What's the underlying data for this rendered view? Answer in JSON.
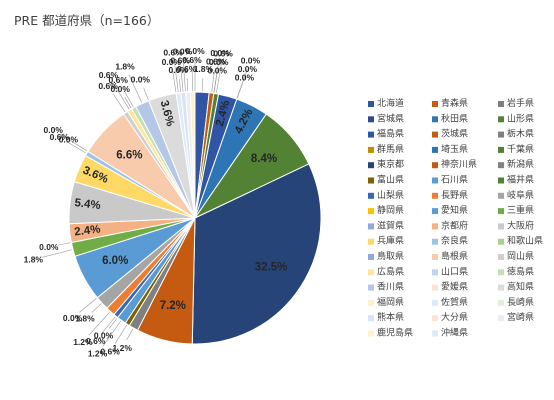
{
  "chart_data": {
    "type": "pie",
    "title": "PRE 都道府県（n=166）",
    "legend_position": "right",
    "start_angle_deg": 0,
    "direction": "clockwise",
    "categories": [
      "北海道",
      "青森県",
      "岩手県",
      "宮城県",
      "秋田県",
      "山形県",
      "福島県",
      "茨城県",
      "栃木県",
      "群馬県",
      "埼玉県",
      "千葉県",
      "東京都",
      "神奈川県",
      "新潟県",
      "富山県",
      "石川県",
      "福井県",
      "山梨県",
      "長野県",
      "岐阜県",
      "静岡県",
      "愛知県",
      "三重県",
      "滋賀県",
      "京都府",
      "大阪府",
      "兵庫県",
      "奈良県",
      "和歌山県",
      "鳥取県",
      "島根県",
      "岡山県",
      "広島県",
      "山口県",
      "徳島県",
      "香川県",
      "愛媛県",
      "高知県",
      "福岡県",
      "佐賀県",
      "長崎県",
      "熊本県",
      "大分県",
      "宮崎県",
      "鹿児島県",
      "沖縄県"
    ],
    "colors": [
      "#2f55a4",
      "#c55a11",
      "#7f7f7f",
      "#2e4a8c",
      "#2e75b6",
      "#548235",
      "#2f55a4",
      "#c55a11",
      "#7f7f7f",
      "#bf9000",
      "#2e75b6",
      "#548235",
      "#264478",
      "#c55a11",
      "#808080",
      "#7f6000",
      "#5b9bd5",
      "#548235",
      "#3a66b8",
      "#ed7d31",
      "#a5a5a5",
      "#ffc000",
      "#5b9bd5",
      "#70ad47",
      "#8faadc",
      "#f4b183",
      "#c9c9c9",
      "#ffd966",
      "#9dc3e6",
      "#a9d18e",
      "#8ea9db",
      "#f8cbad",
      "#d0cece",
      "#ffe699",
      "#bdd7ee",
      "#c5e0b4",
      "#b4c7e7",
      "#fbe5d6",
      "#dbdbdb",
      "#fff2cc",
      "#deebf7",
      "#e2f0d9",
      "#dae3f3",
      "#fce4d6",
      "#ededed",
      "#fff2cc",
      "#ddebf7"
    ],
    "values": [
      1.8,
      0.6,
      0.0,
      0.0,
      0.0,
      0.6,
      2.4,
      0.0,
      0.0,
      0.0,
      4.2,
      8.4,
      32.5,
      7.2,
      1.2,
      0.6,
      1.2,
      0.0,
      0.6,
      1.2,
      1.8,
      0.0,
      6.0,
      1.8,
      0.0,
      2.4,
      5.4,
      3.6,
      0.6,
      0.0,
      0.0,
      6.6,
      0.6,
      0.6,
      0.0,
      0.6,
      1.8,
      0.0,
      3.6,
      0.0,
      0.6,
      0.0,
      0.6,
      0.0,
      0.6,
      0.6,
      0.0
    ],
    "value_labels": [
      "1.8%",
      "0.6%",
      "0.0%",
      "0.0%",
      "0.0%",
      "0.6%",
      "2.4%",
      "0.0%",
      "0.0%",
      "0.0%",
      "4.2%",
      "8.4%",
      "32.5%",
      "7.2%",
      "1.2%",
      "0.6%",
      "1.2%",
      "0.0%",
      "0.6%",
      "1.2%",
      "1.8%",
      "0.0%",
      "6.0%",
      "1.8%",
      "0.0%",
      "2.4%",
      "5.4%",
      "3.6%",
      "0.6%",
      "0.0%",
      "0.0%",
      "6.6%",
      "0.6%",
      "0.6%",
      "0.0%",
      "0.6%",
      "1.8%",
      "0.0%",
      "3.6%",
      "0.0%",
      "0.6%",
      "0.0%",
      "0.6%",
      "0.0%",
      "0.6%",
      "0.6%",
      "0.0%"
    ]
  }
}
